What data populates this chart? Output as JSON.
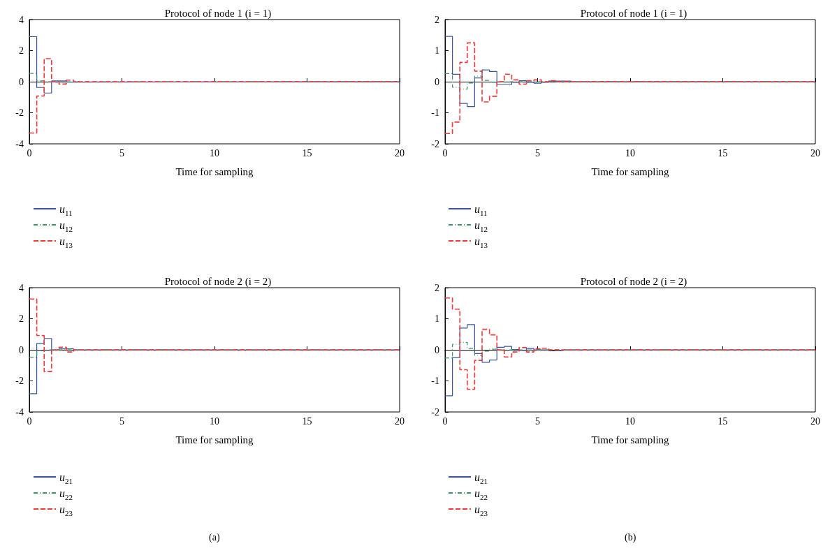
{
  "chart_data": [
    {
      "type": "step",
      "title": "Protocol of node 1 (i = 1)",
      "xlabel": "Time for sampling",
      "x": [
        0,
        0.4,
        0.8,
        1.2,
        1.6,
        2.0,
        2.4,
        20
      ],
      "xlim": [
        0,
        20
      ],
      "xticks": [
        0,
        5,
        10,
        15,
        20
      ],
      "ylim": [
        -4,
        4
      ],
      "yticks": [
        -4,
        -2,
        0,
        2,
        4
      ],
      "legend": "bottom left",
      "series": [
        {
          "name": "u$_{11}$",
          "color": "#3355aa",
          "line_style": "solid",
          "values": [
            2.9,
            -0.37,
            -0.73,
            0.05,
            0.05,
            -0.03,
            0,
            0
          ]
        },
        {
          "name": "u$_{12}$",
          "color": "#339966",
          "line_style": "dashdot",
          "values": [
            0.53,
            0.05,
            0,
            0,
            0,
            0,
            0,
            0
          ]
        },
        {
          "name": "u$_{13}$",
          "color": "#ff3333",
          "line_style": "dashed",
          "values": [
            -3.3,
            -0.92,
            1.48,
            0,
            -0.15,
            0.1,
            0,
            0
          ]
        }
      ]
    },
    {
      "type": "step",
      "title": "Protocol of node 1 (i = 1)",
      "xlabel": "Time for sampling",
      "x": [
        0,
        0.4,
        0.8,
        1.2,
        1.6,
        2.0,
        2.4,
        2.8,
        3.2,
        3.6,
        4.0,
        4.4,
        4.8,
        5.2,
        5.6,
        6.0,
        6.4,
        6.8,
        20
      ],
      "xlim": [
        0,
        20
      ],
      "xticks": [
        0,
        5,
        10,
        15,
        20
      ],
      "ylim": [
        -2,
        2
      ],
      "yticks": [
        -2,
        -1,
        0,
        1,
        2
      ],
      "legend": "bottom left",
      "series": [
        {
          "name": "u$_{11}$",
          "color": "#3355aa",
          "line_style": "solid",
          "values": [
            1.46,
            0.24,
            -0.7,
            -0.8,
            0.12,
            0.38,
            0.33,
            -0.09,
            -0.09,
            -0.02,
            0.03,
            -0.02,
            -0.05,
            -0.02,
            0.02,
            0.02,
            0.02,
            0,
            0
          ]
        },
        {
          "name": "u$_{12}$",
          "color": "#339966",
          "line_style": "dashdot",
          "values": [
            0.26,
            -0.18,
            -0.24,
            -0.04,
            0.18,
            0.04,
            -0.02,
            0,
            0,
            0,
            0,
            0,
            0,
            0,
            0,
            0,
            0,
            0,
            0
          ]
        },
        {
          "name": "u$_{13}$",
          "color": "#ff3333",
          "line_style": "dashed",
          "values": [
            -1.67,
            -1.3,
            0.62,
            1.25,
            0.34,
            -0.65,
            -0.47,
            0,
            0.24,
            0.06,
            -0.08,
            0.03,
            0.06,
            0,
            0.03,
            0,
            0,
            0,
            0
          ]
        }
      ]
    },
    {
      "type": "step",
      "title": "Protocol of node 2 (i = 2)",
      "xlabel": "Time for sampling",
      "x": [
        0,
        0.4,
        0.8,
        1.2,
        1.6,
        2.0,
        2.4,
        20
      ],
      "xlim": [
        0,
        20
      ],
      "xticks": [
        0,
        5,
        10,
        15,
        20
      ],
      "ylim": [
        -4,
        4
      ],
      "yticks": [
        -4,
        -2,
        0,
        2,
        4
      ],
      "legend": "bottom left",
      "annotations": [
        "(a)"
      ],
      "series": [
        {
          "name": "u$_{21}$",
          "color": "#3355aa",
          "line_style": "solid",
          "values": [
            -2.83,
            0.41,
            0.73,
            0,
            0.06,
            0.06,
            0,
            0
          ]
        },
        {
          "name": "u$_{22}$",
          "color": "#339966",
          "line_style": "dashdot",
          "values": [
            -0.48,
            -0.05,
            0,
            0,
            0,
            0,
            0,
            0
          ]
        },
        {
          "name": "u$_{23}$",
          "color": "#ff3333",
          "line_style": "dashed",
          "values": [
            3.27,
            0.92,
            -1.4,
            0,
            0.17,
            -0.14,
            0,
            0
          ]
        }
      ]
    },
    {
      "type": "step",
      "title": "Protocol of node 2 (i = 2)",
      "xlabel": "Time for sampling",
      "x": [
        0,
        0.4,
        0.8,
        1.2,
        1.6,
        2.0,
        2.4,
        2.8,
        3.2,
        3.6,
        4.0,
        4.4,
        4.8,
        5.2,
        5.6,
        6.0,
        6.4,
        6.8,
        20
      ],
      "xlim": [
        0,
        20
      ],
      "xticks": [
        0,
        5,
        10,
        15,
        20
      ],
      "ylim": [
        -2,
        2
      ],
      "yticks": [
        -2,
        -1,
        0,
        1,
        2
      ],
      "legend": "bottom left",
      "annotations": [
        "(b)"
      ],
      "series": [
        {
          "name": "u$_{21}$",
          "color": "#3355aa",
          "line_style": "solid",
          "values": [
            -1.48,
            -0.25,
            0.7,
            0.81,
            -0.12,
            -0.4,
            -0.33,
            0.08,
            0.11,
            0.01,
            -0.02,
            0.04,
            0,
            0,
            -0.03,
            -0.02,
            0,
            0,
            0
          ]
        },
        {
          "name": "u$_{22}$",
          "color": "#339966",
          "line_style": "dashdot",
          "values": [
            -0.26,
            0.18,
            0.24,
            0.04,
            -0.18,
            -0.04,
            0.02,
            0,
            0,
            0,
            0,
            0,
            0,
            0,
            0,
            0,
            0,
            0,
            0
          ]
        },
        {
          "name": "u$_{23}$",
          "color": "#ff3333",
          "line_style": "dashed",
          "values": [
            1.67,
            1.31,
            -0.64,
            -1.27,
            -0.34,
            0.66,
            0.48,
            0,
            -0.23,
            -0.07,
            0.07,
            -0.07,
            0.03,
            0.05,
            0,
            0,
            0,
            0,
            0
          ]
        }
      ]
    }
  ]
}
